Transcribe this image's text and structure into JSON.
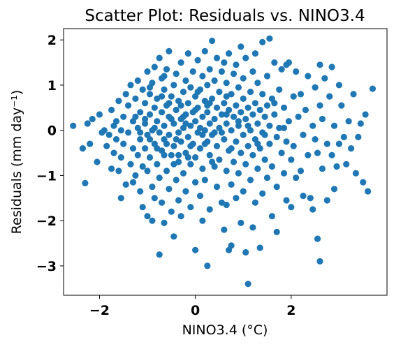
{
  "chart_data": {
    "type": "scatter",
    "title": "Scatter Plot: Residuals vs. NINO3.4",
    "xlabel": "NINO3.4 (°C)",
    "ylabel": "Residuals (mm day⁻¹)",
    "xlim": [
      -2.75,
      4.0
    ],
    "ylim": [
      -3.65,
      2.25
    ],
    "xticks": [
      -2,
      0,
      2
    ],
    "xtick_labels": [
      "−2",
      "0",
      "2"
    ],
    "yticks": [
      -3,
      -2,
      -1,
      0,
      1,
      2
    ],
    "ytick_labels": [
      "−3",
      "−2",
      "−1",
      "0",
      "1",
      "2"
    ],
    "grid": false,
    "marker_color": "#1f77b4",
    "points": [
      [
        -2.55,
        0.1
      ],
      [
        -2.35,
        -0.4
      ],
      [
        -2.3,
        -1.17
      ],
      [
        -2.25,
        0.15
      ],
      [
        -2.2,
        -0.3
      ],
      [
        -2.15,
        0.25
      ],
      [
        -2.05,
        -0.7
      ],
      [
        -2.0,
        0.35
      ],
      [
        -1.95,
        -0.05
      ],
      [
        -1.9,
        0.0
      ],
      [
        -1.85,
        -0.35
      ],
      [
        -1.8,
        -0.1
      ],
      [
        -1.75,
        0.45
      ],
      [
        -1.75,
        -0.85
      ],
      [
        -1.7,
        0.1
      ],
      [
        -1.7,
        -0.5
      ],
      [
        -1.65,
        0.2
      ],
      [
        -1.65,
        -0.2
      ],
      [
        -1.6,
        0.65
      ],
      [
        -1.6,
        -0.9
      ],
      [
        -1.55,
        0.0
      ],
      [
        -1.55,
        -0.6
      ],
      [
        -1.55,
        -1.5
      ],
      [
        -1.5,
        0.3
      ],
      [
        -1.5,
        -0.3
      ],
      [
        -1.45,
        0.8
      ],
      [
        -1.45,
        -1.2
      ],
      [
        -1.4,
        -0.05
      ],
      [
        -1.4,
        0.55
      ],
      [
        -1.35,
        -0.75
      ],
      [
        -1.35,
        1.0
      ],
      [
        -1.3,
        0.2
      ],
      [
        -1.3,
        -0.4
      ],
      [
        -1.3,
        -1.15
      ],
      [
        -1.25,
        0.7
      ],
      [
        -1.25,
        -1.0
      ],
      [
        -1.2,
        0.05
      ],
      [
        -1.2,
        -0.55
      ],
      [
        -1.2,
        1.1
      ],
      [
        -1.15,
        0.4
      ],
      [
        -1.15,
        -0.2
      ],
      [
        -1.15,
        -1.35
      ],
      [
        -1.1,
        0.9
      ],
      [
        -1.1,
        -0.8
      ],
      [
        -1.1,
        -1.7
      ],
      [
        -1.05,
        0.15
      ],
      [
        -1.05,
        -0.4
      ],
      [
        -1.05,
        0.6
      ],
      [
        -1.0,
        1.3
      ],
      [
        -1.0,
        -0.1
      ],
      [
        -1.0,
        -0.9
      ],
      [
        -1.0,
        -1.9
      ],
      [
        -0.95,
        0.35
      ],
      [
        -0.95,
        -0.6
      ],
      [
        -0.95,
        0.8
      ],
      [
        -0.9,
        0.0
      ],
      [
        -0.9,
        -1.25
      ],
      [
        -0.9,
        1.05
      ],
      [
        -0.9,
        -2.0
      ],
      [
        -0.85,
        0.5
      ],
      [
        -0.85,
        -0.3
      ],
      [
        -0.85,
        1.4
      ],
      [
        -0.85,
        -1.5
      ],
      [
        -0.8,
        0.2
      ],
      [
        -0.8,
        -0.75
      ],
      [
        -0.8,
        0.7
      ],
      [
        -0.75,
        -0.05
      ],
      [
        -0.75,
        -1.05
      ],
      [
        -0.75,
        1.6
      ],
      [
        -0.75,
        -2.75
      ],
      [
        -0.7,
        0.4
      ],
      [
        -0.7,
        -0.45
      ],
      [
        -0.7,
        1.15
      ],
      [
        -0.7,
        -1.6
      ],
      [
        -0.65,
        0.1
      ],
      [
        -0.65,
        -0.2
      ],
      [
        -0.65,
        0.9
      ],
      [
        -0.65,
        -2.05
      ],
      [
        -0.6,
        0.55
      ],
      [
        -0.6,
        -0.9
      ],
      [
        -0.6,
        1.35
      ],
      [
        -0.55,
        -0.1
      ],
      [
        -0.55,
        0.3
      ],
      [
        -0.55,
        -1.3
      ],
      [
        -0.55,
        1.75
      ],
      [
        -0.5,
        0.75
      ],
      [
        -0.5,
        -0.55
      ],
      [
        -0.5,
        -1.8
      ],
      [
        -0.45,
        0.15
      ],
      [
        -0.45,
        1.0
      ],
      [
        -0.45,
        -0.35
      ],
      [
        -0.45,
        -2.35
      ],
      [
        -0.4,
        0.45
      ],
      [
        -0.4,
        -1.1
      ],
      [
        -0.4,
        1.25
      ],
      [
        -0.35,
        -0.05
      ],
      [
        -0.35,
        0.65
      ],
      [
        -0.35,
        -0.7
      ],
      [
        -0.35,
        -1.55
      ],
      [
        -0.3,
        0.25
      ],
      [
        -0.3,
        1.5
      ],
      [
        -0.3,
        -0.25
      ],
      [
        -0.3,
        -1.9
      ],
      [
        -0.25,
        0.85
      ],
      [
        -0.25,
        0.05
      ],
      [
        -0.25,
        -0.95
      ],
      [
        -0.2,
        0.35
      ],
      [
        -0.2,
        1.1
      ],
      [
        -0.2,
        -0.5
      ],
      [
        -0.2,
        -1.35
      ],
      [
        -0.15,
        0.6
      ],
      [
        -0.15,
        -0.15
      ],
      [
        -0.15,
        1.7
      ],
      [
        -0.1,
        0.1
      ],
      [
        -0.1,
        0.95
      ],
      [
        -0.1,
        -0.75
      ],
      [
        -0.1,
        -1.7
      ],
      [
        -0.05,
        0.4
      ],
      [
        -0.05,
        -0.3
      ],
      [
        -0.05,
        1.3
      ],
      [
        0.0,
        0.2
      ],
      [
        0.0,
        -0.6
      ],
      [
        0.0,
        0.75
      ],
      [
        0.0,
        -1.15
      ],
      [
        0.0,
        -2.65
      ],
      [
        0.05,
        0.5
      ],
      [
        0.05,
        -0.05
      ],
      [
        0.05,
        1.55
      ],
      [
        0.1,
        0.9
      ],
      [
        0.1,
        -0.4
      ],
      [
        0.1,
        -1.45
      ],
      [
        0.15,
        0.3
      ],
      [
        0.15,
        1.2
      ],
      [
        0.15,
        -0.85
      ],
      [
        0.15,
        -2.0
      ],
      [
        0.2,
        0.65
      ],
      [
        0.2,
        0.0
      ],
      [
        0.2,
        1.75
      ],
      [
        0.2,
        -1.1
      ],
      [
        0.25,
        0.4
      ],
      [
        0.25,
        -0.25
      ],
      [
        0.25,
        1.0
      ],
      [
        0.25,
        -3.0
      ],
      [
        0.3,
        0.15
      ],
      [
        0.3,
        1.35
      ],
      [
        0.3,
        -0.55
      ],
      [
        0.3,
        -1.75
      ],
      [
        0.35,
        0.7
      ],
      [
        0.35,
        -0.1
      ],
      [
        0.35,
        1.98
      ],
      [
        0.4,
        0.25
      ],
      [
        0.4,
        1.1
      ],
      [
        0.4,
        -0.8
      ],
      [
        0.45,
        0.5
      ],
      [
        0.45,
        -0.35
      ],
      [
        0.45,
        1.6
      ],
      [
        0.45,
        -1.25
      ],
      [
        0.5,
        0.85
      ],
      [
        0.5,
        0.05
      ],
      [
        0.5,
        -0.65
      ],
      [
        0.55,
        1.3
      ],
      [
        0.55,
        0.35
      ],
      [
        0.55,
        -1.6
      ],
      [
        0.6,
        0.6
      ],
      [
        0.6,
        -0.2
      ],
      [
        0.6,
        1.5
      ],
      [
        0.6,
        -2.2
      ],
      [
        0.65,
        0.15
      ],
      [
        0.65,
        1.05
      ],
      [
        0.65,
        -0.9
      ],
      [
        0.65,
        -1.65
      ],
      [
        0.7,
        0.45
      ],
      [
        0.7,
        -0.45
      ],
      [
        0.7,
        1.7
      ],
      [
        0.7,
        -2.65
      ],
      [
        0.75,
        0.8
      ],
      [
        0.75,
        0.0
      ],
      [
        0.75,
        -1.2
      ],
      [
        0.75,
        -2.55
      ],
      [
        0.8,
        0.3
      ],
      [
        0.8,
        1.25
      ],
      [
        0.8,
        -0.7
      ],
      [
        0.85,
        0.55
      ],
      [
        0.85,
        -0.25
      ],
      [
        0.85,
        1.45
      ],
      [
        0.85,
        -1.5
      ],
      [
        0.9,
        0.1
      ],
      [
        0.9,
        0.95
      ],
      [
        0.9,
        -0.95
      ],
      [
        0.95,
        0.4
      ],
      [
        0.95,
        -0.5
      ],
      [
        0.95,
        1.85
      ],
      [
        0.95,
        -2.05
      ],
      [
        1.0,
        0.7
      ],
      [
        1.0,
        -0.1
      ],
      [
        1.0,
        1.15
      ],
      [
        1.0,
        -1.35
      ],
      [
        1.05,
        0.25
      ],
      [
        1.05,
        -0.75
      ],
      [
        1.05,
        1.6
      ],
      [
        1.05,
        -2.7
      ],
      [
        1.1,
        0.5
      ],
      [
        1.1,
        -0.35
      ],
      [
        1.1,
        -3.4
      ],
      [
        1.15,
        0.85
      ],
      [
        1.15,
        0.0
      ],
      [
        1.15,
        -1.1
      ],
      [
        1.2,
        0.35
      ],
      [
        1.2,
        1.3
      ],
      [
        1.2,
        -0.55
      ],
      [
        1.2,
        -2.15
      ],
      [
        1.25,
        0.6
      ],
      [
        1.25,
        -0.2
      ],
      [
        1.25,
        1.7
      ],
      [
        1.25,
        -1.6
      ],
      [
        1.3,
        0.15
      ],
      [
        1.3,
        1.05
      ],
      [
        1.3,
        -0.85
      ],
      [
        1.35,
        0.45
      ],
      [
        1.35,
        -0.4
      ],
      [
        1.35,
        -2.6
      ],
      [
        1.4,
        0.8
      ],
      [
        1.4,
        -0.05
      ],
      [
        1.4,
        1.95
      ],
      [
        1.4,
        -1.4
      ],
      [
        1.45,
        0.3
      ],
      [
        1.45,
        -0.65
      ],
      [
        1.5,
        1.2
      ],
      [
        1.5,
        0.55
      ],
      [
        1.5,
        -1.05
      ],
      [
        1.55,
        0.1
      ],
      [
        1.55,
        -0.3
      ],
      [
        1.55,
        2.03
      ],
      [
        1.6,
        0.7
      ],
      [
        1.6,
        -0.8
      ],
      [
        1.6,
        -1.9
      ],
      [
        1.65,
        0.35
      ],
      [
        1.65,
        1.5
      ],
      [
        1.7,
        -0.15
      ],
      [
        1.7,
        -1.25
      ],
      [
        1.7,
        -2.25
      ],
      [
        1.75,
        0.9
      ],
      [
        1.75,
        0.05
      ],
      [
        1.8,
        -0.5
      ],
      [
        1.8,
        1.35
      ],
      [
        1.85,
        0.5
      ],
      [
        1.85,
        -0.95
      ],
      [
        1.9,
        1.45
      ],
      [
        1.9,
        -0.25
      ],
      [
        1.9,
        -1.55
      ],
      [
        1.95,
        0.2
      ],
      [
        1.95,
        1.5
      ],
      [
        2.0,
        -0.65
      ],
      [
        2.0,
        -1.7
      ],
      [
        2.05,
        0.75
      ],
      [
        2.05,
        -0.35
      ],
      [
        2.1,
        1.3
      ],
      [
        2.1,
        -1.05
      ],
      [
        2.15,
        0.3
      ],
      [
        2.2,
        -0.9
      ],
      [
        2.2,
        0.8
      ],
      [
        2.25,
        -0.1
      ],
      [
        2.25,
        -1.45
      ],
      [
        2.3,
        0.45
      ],
      [
        2.35,
        1.2
      ],
      [
        2.35,
        -0.55
      ],
      [
        2.4,
        -1.5
      ],
      [
        2.45,
        0.1
      ],
      [
        2.45,
        -1.75
      ],
      [
        2.5,
        0.95
      ],
      [
        2.5,
        -0.2
      ],
      [
        2.55,
        -2.4
      ],
      [
        2.55,
        -0.5
      ],
      [
        2.6,
        0.55
      ],
      [
        2.6,
        1.45
      ],
      [
        2.6,
        -2.9
      ],
      [
        2.65,
        -0.85
      ],
      [
        2.65,
        0.25
      ],
      [
        2.7,
        1.15
      ],
      [
        2.75,
        -0.3
      ],
      [
        2.75,
        -1.55
      ],
      [
        2.8,
        0.75
      ],
      [
        2.85,
        -0.55
      ],
      [
        2.85,
        1.4
      ],
      [
        2.9,
        0.1
      ],
      [
        2.9,
        -1.3
      ],
      [
        2.95,
        -0.8
      ],
      [
        3.0,
        1.0
      ],
      [
        3.0,
        -0.3
      ],
      [
        3.05,
        0.55
      ],
      [
        3.1,
        -0.15
      ],
      [
        3.15,
        -0.75
      ],
      [
        3.2,
        0.2
      ],
      [
        3.25,
        -0.4
      ],
      [
        3.3,
        0.8
      ],
      [
        3.35,
        -0.95
      ],
      [
        3.4,
        -0.15
      ],
      [
        3.45,
        0.15
      ],
      [
        3.5,
        -1.15
      ],
      [
        3.55,
        0.35
      ],
      [
        3.6,
        -1.35
      ],
      [
        3.7,
        0.92
      ],
      [
        -1.05,
        0.25
      ],
      [
        -0.95,
        -0.2
      ],
      [
        -0.85,
        0.05
      ],
      [
        -0.8,
        -0.4
      ],
      [
        -0.7,
        0.75
      ],
      [
        -0.6,
        -0.3
      ],
      [
        -0.5,
        0.25
      ],
      [
        -0.4,
        -0.2
      ],
      [
        -0.3,
        0.55
      ],
      [
        -0.2,
        0.15
      ],
      [
        -0.1,
        -0.35
      ],
      [
        0.0,
        0.45
      ],
      [
        0.1,
        0.05
      ],
      [
        0.2,
        -0.3
      ],
      [
        0.3,
        0.6
      ],
      [
        0.4,
        -0.05
      ],
      [
        -1.25,
        0.3
      ],
      [
        -1.15,
        -0.05
      ],
      [
        -0.65,
        -0.55
      ],
      [
        -0.55,
        0.6
      ],
      [
        -0.45,
        -0.75
      ],
      [
        -0.25,
        0.3
      ],
      [
        -0.15,
        -0.6
      ],
      [
        0.05,
        0.85
      ],
      [
        0.15,
        -0.1
      ],
      [
        0.25,
        0.55
      ],
      [
        0.55,
        -0.05
      ],
      [
        0.65,
        0.35
      ],
      [
        0.75,
        -0.4
      ],
      [
        0.9,
        0.2
      ],
      [
        1.1,
        0.1
      ],
      [
        1.3,
        -0.3
      ],
      [
        -0.95,
        0.95
      ],
      [
        -0.65,
        1.2
      ],
      [
        -0.35,
        -0.55
      ],
      [
        0.35,
        -0.7
      ],
      [
        0.65,
        0.75
      ],
      [
        1.45,
        -0.1
      ],
      [
        1.65,
        0.6
      ],
      [
        1.85,
        0.05
      ]
    ]
  }
}
